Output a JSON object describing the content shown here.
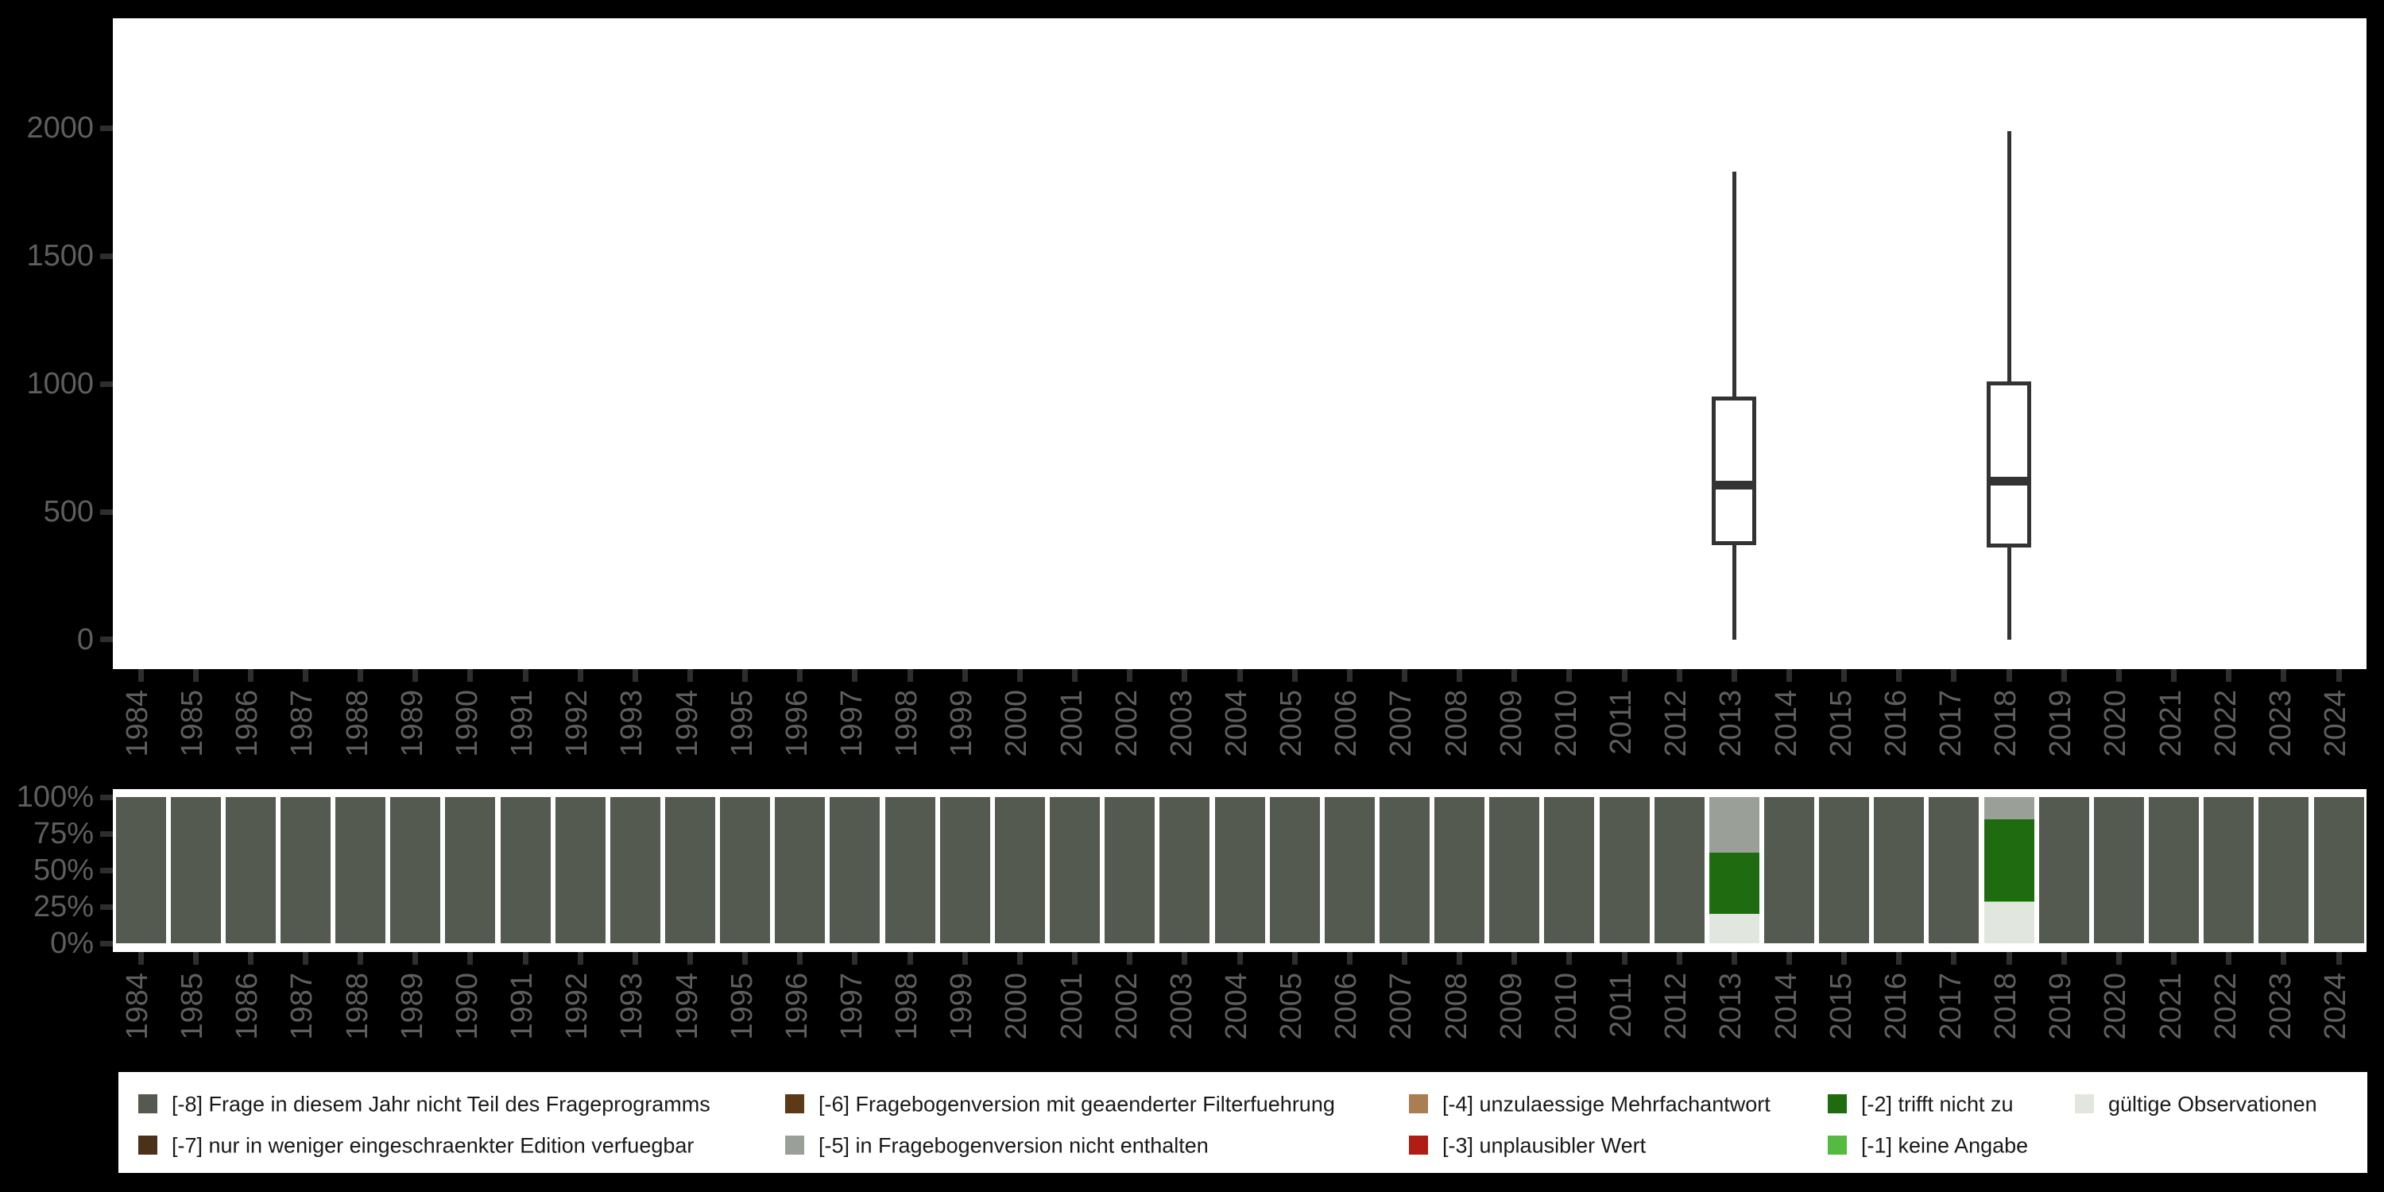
{
  "figure": {
    "background": "#000000",
    "panel_background": "#ffffff",
    "axis_text_color": "#5e5e5e",
    "axis_tick_color": "#2e2e2e",
    "box_stroke_color": "#333333"
  },
  "chart_data": [
    {
      "type": "boxplot",
      "title": "",
      "xlabel": "",
      "ylabel": "",
      "categories": [
        "1984",
        "1985",
        "1986",
        "1987",
        "1988",
        "1989",
        "1990",
        "1991",
        "1992",
        "1993",
        "1994",
        "1995",
        "1996",
        "1997",
        "1998",
        "1999",
        "2000",
        "2001",
        "2002",
        "2003",
        "2004",
        "2005",
        "2006",
        "2007",
        "2008",
        "2009",
        "2010",
        "2011",
        "2012",
        "2013",
        "2014",
        "2015",
        "2016",
        "2017",
        "2018",
        "2019",
        "2020",
        "2021",
        "2022",
        "2023",
        "2024"
      ],
      "y_ticks": [
        0,
        500,
        1000,
        1500,
        2000
      ],
      "ylim": [
        -115,
        2430
      ],
      "grid": false,
      "boxes": [
        {
          "category": "2013",
          "min": 0,
          "q1": 370,
          "median": 605,
          "q3": 950,
          "max": 1830
        },
        {
          "category": "2018",
          "min": 0,
          "q1": 360,
          "median": 620,
          "q3": 1010,
          "max": 1990
        }
      ]
    },
    {
      "type": "bar",
      "stacked": true,
      "unit": "percent",
      "title": "",
      "xlabel": "",
      "ylabel": "",
      "categories": [
        "1984",
        "1985",
        "1986",
        "1987",
        "1988",
        "1989",
        "1990",
        "1991",
        "1992",
        "1993",
        "1994",
        "1995",
        "1996",
        "1997",
        "1998",
        "1999",
        "2000",
        "2001",
        "2002",
        "2003",
        "2004",
        "2005",
        "2006",
        "2007",
        "2008",
        "2009",
        "2010",
        "2011",
        "2012",
        "2013",
        "2014",
        "2015",
        "2016",
        "2017",
        "2018",
        "2019",
        "2020",
        "2021",
        "2022",
        "2023",
        "2024"
      ],
      "y_ticks": [
        "0%",
        "25%",
        "50%",
        "75%",
        "100%"
      ],
      "ylim": [
        0,
        100
      ],
      "default_full_bar_code": "-8",
      "bars_override": [
        {
          "category": "2013",
          "segments_bottom_to_top": [
            {
              "code": "valid",
              "pct": 20
            },
            {
              "code": "-2",
              "pct": 42
            },
            {
              "code": "-5",
              "pct": 38
            }
          ]
        },
        {
          "category": "2018",
          "segments_bottom_to_top": [
            {
              "code": "valid",
              "pct": 28
            },
            {
              "code": "-1",
              "pct": 1
            },
            {
              "code": "-2",
              "pct": 56
            },
            {
              "code": "-5",
              "pct": 15
            }
          ]
        }
      ]
    }
  ],
  "legend": {
    "position": "bottom",
    "items": [
      {
        "code": "-8",
        "label": "[-8] Frage in diesem Jahr nicht Teil des Frageprogramms",
        "color": "#545a50"
      },
      {
        "code": "-7",
        "label": "[-7] nur in weniger eingeschraenkter Edition verfuegbar",
        "color": "#4b3118"
      },
      {
        "code": "-6",
        "label": "[-6] Fragebogenversion mit geaenderter Filterfuehrung",
        "color": "#5c3a18"
      },
      {
        "code": "-5",
        "label": "[-5] in Fragebogenversion nicht enthalten",
        "color": "#9aa098"
      },
      {
        "code": "-4",
        "label": "[-4] unzulaessige Mehrfachantwort",
        "color": "#a87e52"
      },
      {
        "code": "-3",
        "label": "[-3] unplausibler Wert",
        "color": "#b11d15"
      },
      {
        "code": "-2",
        "label": "[-2] trifft nicht zu",
        "color": "#1f6c10"
      },
      {
        "code": "-1",
        "label": "[-1] keine Angabe",
        "color": "#54bb40"
      },
      {
        "code": "valid",
        "label": "gültige Observationen",
        "color": "#e1e6df"
      }
    ]
  }
}
